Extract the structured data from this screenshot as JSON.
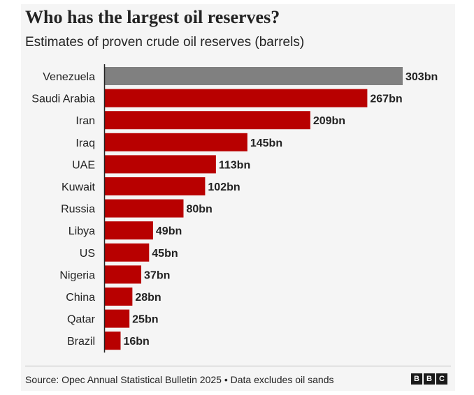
{
  "title": "Who has the largest oil reserves?",
  "subtitle": "Estimates of proven crude oil reserves (barrels)",
  "source": "Source: Opec Annual Statistical Bulletin 2025 • Data excludes oil sands",
  "logo": [
    "B",
    "B",
    "C"
  ],
  "colors": {
    "highlight": "#808080",
    "bar": "#b80000",
    "text": "#222222"
  },
  "chart_data": {
    "type": "bar",
    "orientation": "horizontal",
    "title": "Who has the largest oil reserves?",
    "subtitle": "Estimates of proven crude oil reserves (barrels)",
    "categories": [
      "Venezuela",
      "Saudi Arabia",
      "Iran",
      "Iraq",
      "UAE",
      "Kuwait",
      "Russia",
      "Libya",
      "US",
      "Nigeria",
      "China",
      "Qatar",
      "Brazil"
    ],
    "values": [
      303,
      267,
      209,
      145,
      113,
      102,
      80,
      49,
      45,
      37,
      28,
      25,
      16
    ],
    "labels": [
      "303bn",
      "267bn",
      "209bn",
      "145bn",
      "113bn",
      "102bn",
      "80bn",
      "49bn",
      "45bn",
      "37bn",
      "28bn",
      "25bn",
      "16bn"
    ],
    "unit": "bn",
    "highlighted": [
      "Venezuela"
    ],
    "xlim": [
      0,
      303
    ],
    "grid": false,
    "legend": "none"
  }
}
